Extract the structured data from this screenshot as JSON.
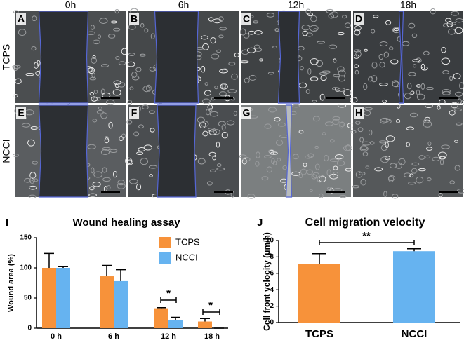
{
  "micrographs": {
    "columns": [
      "0h",
      "6h",
      "12h",
      "18h"
    ],
    "rows": [
      "TCPS",
      "NCCI"
    ],
    "panels": [
      "A",
      "B",
      "C",
      "D",
      "E",
      "F",
      "G",
      "H"
    ]
  },
  "chart_data": [
    {
      "type": "bar",
      "panel": "I",
      "title": "Wound healing  assay",
      "y_label": "Wound area (%)",
      "categories": [
        "0 h",
        "6 h",
        "12 h",
        "18 h"
      ],
      "series": [
        {
          "name": "TCPS",
          "color": "#f7923a",
          "values": [
            100,
            86,
            33,
            11
          ],
          "errors": [
            24,
            18,
            1,
            5
          ]
        },
        {
          "name": "NCCI",
          "color": "#66b3f0",
          "values": [
            100,
            78,
            13,
            0
          ],
          "errors": [
            2,
            19,
            5,
            0
          ]
        }
      ],
      "ylim": [
        0,
        150
      ],
      "yticks": [
        0,
        50,
        100,
        150
      ],
      "annotations": [
        "*",
        "*"
      ]
    },
    {
      "type": "bar",
      "panel": "J",
      "title": "Cell migration velocity",
      "y_label": "Cell front velocity (μm/h)",
      "categories": [
        "TCPS",
        "NCCI"
      ],
      "values": [
        7.1,
        8.7
      ],
      "errors": [
        1.3,
        0.3
      ],
      "colors": [
        "#f7923a",
        "#66b3f0"
      ],
      "ylim": [
        0,
        10
      ],
      "yticks": [
        0,
        2,
        4,
        6,
        8,
        10
      ],
      "annotations": [
        "**"
      ]
    }
  ]
}
